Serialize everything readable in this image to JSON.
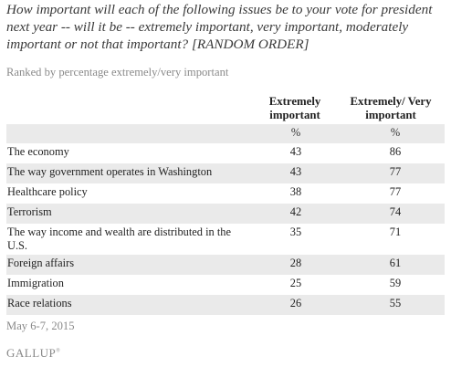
{
  "question": "How important will each of the following issues be to your vote for president next year -- will it be -- extremely important, very important, moderately important or not that important? [RANDOM ORDER]",
  "subtitle": "Ranked by percentage extremely/very important",
  "columns": {
    "extremely": "Extremely important",
    "extremely_very": "Extremely/ Very important",
    "unit_a": "%",
    "unit_b": "%"
  },
  "rows": [
    {
      "issue": "The economy",
      "extremely": "43",
      "extremely_very": "86"
    },
    {
      "issue": "The way government operates in Washington",
      "extremely": "43",
      "extremely_very": "77"
    },
    {
      "issue": "Healthcare policy",
      "extremely": "38",
      "extremely_very": "77"
    },
    {
      "issue": "Terrorism",
      "extremely": "42",
      "extremely_very": "74"
    },
    {
      "issue": "The way income and wealth are distributed in the U.S.",
      "extremely": "35",
      "extremely_very": "71"
    },
    {
      "issue": "Foreign affairs",
      "extremely": "28",
      "extremely_very": "61"
    },
    {
      "issue": "Immigration",
      "extremely": "25",
      "extremely_very": "59"
    },
    {
      "issue": "Race relations",
      "extremely": "26",
      "extremely_very": "55"
    }
  ],
  "footnote": "May 6-7, 2015",
  "logo": "GALLUP",
  "logo_mark": "®"
}
